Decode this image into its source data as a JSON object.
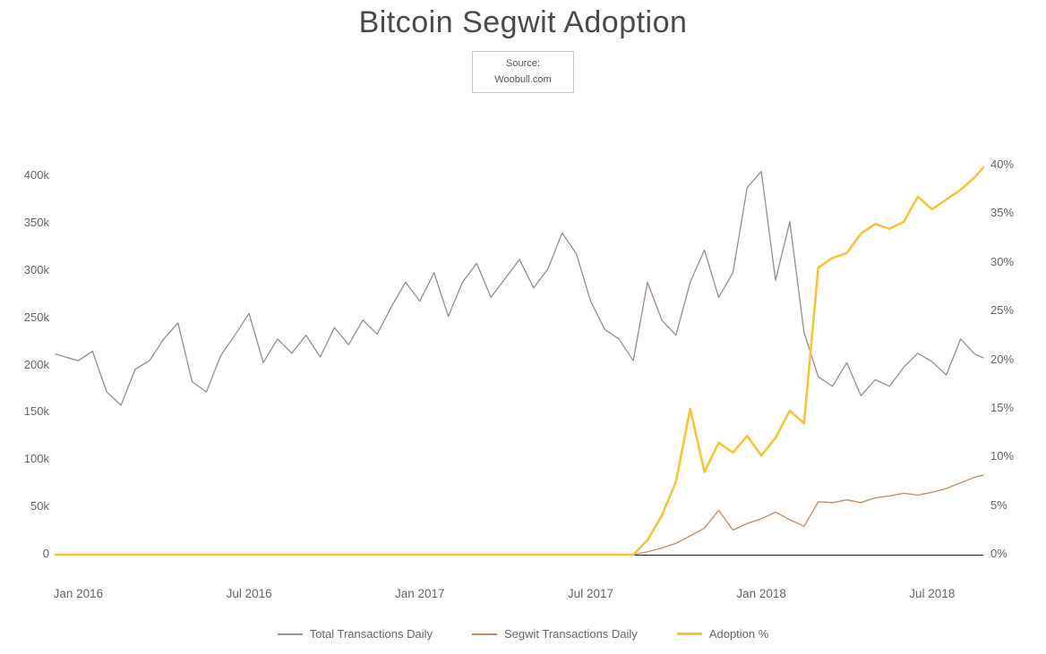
{
  "page": {
    "title": "Bitcoin Segwit Adoption",
    "source_line1": "Source:",
    "source_line2": "Woobull.com"
  },
  "chart_data": {
    "type": "line",
    "title": "Bitcoin Segwit Adoption",
    "grid": false,
    "legend_position": "bottom",
    "x_unit": "months since Jan 2016",
    "x_tick_months": [
      0,
      6,
      12,
      18,
      24,
      30
    ],
    "x_tick_labels": [
      "Jan 2016",
      "Jul 2016",
      "Jan 2017",
      "Jul 2017",
      "Jan 2018",
      "Jul 2018"
    ],
    "left_axis": {
      "unit": "transactions per day (thousands)",
      "tick_values": [
        0,
        50,
        100,
        150,
        200,
        250,
        300,
        350,
        400
      ],
      "tick_labels": [
        "0",
        "50k",
        "100k",
        "150k",
        "200k",
        "250k",
        "300k",
        "350k",
        "400k"
      ],
      "range": [
        0,
        430
      ]
    },
    "right_axis": {
      "unit": "percent",
      "tick_values": [
        0,
        5,
        10,
        15,
        20,
        25,
        30,
        35,
        40
      ],
      "tick_labels": [
        "0%",
        "5%",
        "10%",
        "15%",
        "20%",
        "25%",
        "30%",
        "35%",
        "40%"
      ],
      "range": [
        0,
        43
      ]
    },
    "x": [
      -0.8,
      0,
      0.5,
      1,
      1.5,
      2,
      2.5,
      3,
      3.5,
      4,
      4.5,
      5,
      5.5,
      6,
      6.5,
      7,
      7.5,
      8,
      8.5,
      9,
      9.5,
      10,
      10.5,
      11,
      11.5,
      12,
      12.5,
      13,
      13.5,
      14,
      14.5,
      15,
      15.5,
      16,
      16.5,
      17,
      17.5,
      18,
      18.5,
      19,
      19.5,
      20,
      20.5,
      21,
      21.5,
      22,
      22.5,
      23,
      23.5,
      24,
      24.5,
      25,
      25.5,
      26,
      26.5,
      27,
      27.5,
      28,
      28.5,
      29,
      29.5,
      30,
      30.5,
      31,
      31.5,
      31.8
    ],
    "series": [
      {
        "name": "Total Transactions Daily",
        "axis": "left",
        "color": "#9c8c8a",
        "line_width": 1.3,
        "values": [
          212,
          205,
          215,
          172,
          158,
          196,
          205,
          228,
          245,
          183,
          172,
          210,
          232,
          255,
          203,
          228,
          213,
          232,
          209,
          240,
          222,
          248,
          233,
          262,
          288,
          268,
          298,
          252,
          288,
          308,
          272,
          292,
          312,
          282,
          302,
          340,
          318,
          268,
          238,
          228,
          205,
          288,
          248,
          232,
          288,
          322,
          272,
          298,
          388,
          405,
          290,
          352,
          235,
          188,
          178,
          203,
          168,
          185,
          178,
          198,
          213,
          204,
          190,
          228,
          212,
          208
        ]
      },
      {
        "name": "Segwit Transactions Daily",
        "axis": "left",
        "color": "#bd8d63",
        "line_width": 1.3,
        "values": [
          0,
          0,
          0,
          0,
          0,
          0,
          0,
          0,
          0,
          0,
          0,
          0,
          0,
          0,
          0,
          0,
          0,
          0,
          0,
          0,
          0,
          0,
          0,
          0,
          0,
          0,
          0,
          0,
          0,
          0,
          0,
          0,
          0,
          0,
          0,
          0,
          0,
          0,
          0,
          0,
          0,
          3,
          7,
          12,
          20,
          28,
          47,
          26,
          33,
          38,
          45,
          37,
          30,
          56,
          55,
          58,
          55,
          60,
          62,
          65,
          63,
          66,
          70,
          76,
          82,
          84
        ]
      },
      {
        "name": "Adoption %",
        "axis": "right",
        "color": "#f7c33b",
        "line_width": 2.6,
        "values": [
          0,
          0,
          0,
          0,
          0,
          0,
          0,
          0,
          0,
          0,
          0,
          0,
          0,
          0,
          0,
          0,
          0,
          0,
          0,
          0,
          0,
          0,
          0,
          0,
          0,
          0,
          0,
          0,
          0,
          0,
          0,
          0,
          0,
          0,
          0,
          0,
          0,
          0,
          0,
          0,
          0,
          1.5,
          4,
          7.5,
          15,
          8.5,
          11.5,
          10.5,
          12.2,
          10.2,
          12,
          14.8,
          13.5,
          29.5,
          30.5,
          31,
          33,
          34,
          33.5,
          34.2,
          36.8,
          35.5,
          36.5,
          37.5,
          38.8,
          39.8
        ]
      }
    ]
  }
}
